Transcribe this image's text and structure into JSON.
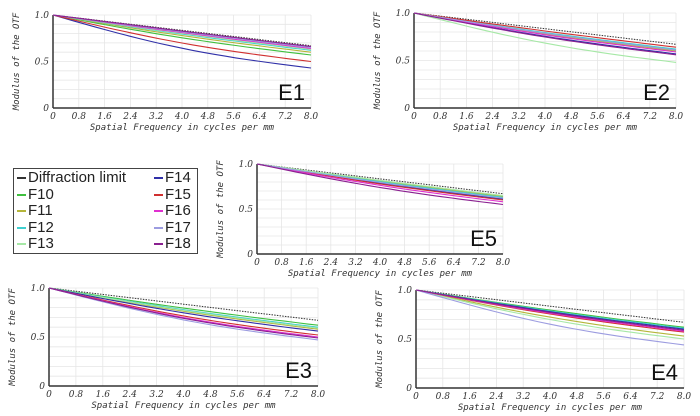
{
  "legend": {
    "items": [
      {
        "name": "Diffraction limit",
        "color": "#333333"
      },
      {
        "name": "F10",
        "color": "#3fbf3f"
      },
      {
        "name": "F11",
        "color": "#b5b53a"
      },
      {
        "name": "F12",
        "color": "#40d0d0"
      },
      {
        "name": "F13",
        "color": "#a6e8a6"
      },
      {
        "name": "F14",
        "color": "#3030a8"
      },
      {
        "name": "F15",
        "color": "#d03030"
      },
      {
        "name": "F16",
        "color": "#e030d0"
      },
      {
        "name": "F17",
        "color": "#9c9ce0"
      },
      {
        "name": "F18",
        "color": "#8a2090"
      }
    ]
  },
  "chart_data": [
    {
      "type": "line",
      "panel": "E1",
      "title": "E1",
      "xlabel": "Spatial Frequency in cycles per mm",
      "ylabel": "Modulus of the OTF",
      "xlim": [
        0,
        8
      ],
      "ylim": [
        0,
        1
      ],
      "xticks": [
        "0",
        "0.8",
        "1.6",
        "2.4",
        "3.2",
        "4.0",
        "4.8",
        "5.6",
        "6.4",
        "7.2",
        "8.0"
      ],
      "yticks": [
        "0",
        "0.5",
        "1.0"
      ],
      "grid": true,
      "x": [
        0,
        8
      ],
      "series": [
        {
          "name": "Diffraction limit",
          "values": [
            1.0,
            0.67
          ]
        },
        {
          "name": "F10",
          "values": [
            1.0,
            0.57
          ]
        },
        {
          "name": "F11",
          "values": [
            1.0,
            0.6
          ]
        },
        {
          "name": "F12",
          "values": [
            1.0,
            0.62
          ]
        },
        {
          "name": "F13",
          "values": [
            1.0,
            0.63
          ]
        },
        {
          "name": "F14",
          "values": [
            1.0,
            0.43
          ]
        },
        {
          "name": "F15",
          "values": [
            1.0,
            0.5
          ]
        },
        {
          "name": "F16",
          "values": [
            1.0,
            0.64
          ]
        },
        {
          "name": "F17",
          "values": [
            1.0,
            0.65
          ]
        },
        {
          "name": "F18",
          "values": [
            1.0,
            0.66
          ]
        }
      ]
    },
    {
      "type": "line",
      "panel": "E2",
      "title": "E2",
      "xlabel": "Spatial Frequency in cycles per mm",
      "ylabel": "Modulus of the OTF",
      "xlim": [
        0,
        8
      ],
      "ylim": [
        0,
        1
      ],
      "xticks": [
        "0",
        "0.8",
        "1.6",
        "2.4",
        "3.2",
        "4.0",
        "4.8",
        "5.6",
        "6.4",
        "7.2",
        "8.0"
      ],
      "yticks": [
        "0",
        "0.5",
        "1.0"
      ],
      "grid": true,
      "x": [
        0,
        8
      ],
      "series": [
        {
          "name": "Diffraction limit",
          "values": [
            1.0,
            0.67
          ]
        },
        {
          "name": "F10",
          "values": [
            1.0,
            0.61
          ]
        },
        {
          "name": "F11",
          "values": [
            1.0,
            0.6
          ]
        },
        {
          "name": "F12",
          "values": [
            1.0,
            0.62
          ]
        },
        {
          "name": "F13",
          "values": [
            1.0,
            0.48
          ]
        },
        {
          "name": "F14",
          "values": [
            1.0,
            0.57
          ]
        },
        {
          "name": "F15",
          "values": [
            1.0,
            0.64
          ]
        },
        {
          "name": "F16",
          "values": [
            1.0,
            0.59
          ]
        },
        {
          "name": "F17",
          "values": [
            1.0,
            0.61
          ]
        },
        {
          "name": "F18",
          "values": [
            1.0,
            0.56
          ]
        }
      ]
    },
    {
      "type": "line",
      "panel": "E5",
      "title": "E5",
      "xlabel": "Spatial Frequency in cycles per mm",
      "ylabel": "Modulus of the OTF",
      "xlim": [
        0,
        8
      ],
      "ylim": [
        0,
        1
      ],
      "xticks": [
        "0",
        "0.8",
        "1.6",
        "2.4",
        "3.2",
        "4.0",
        "4.8",
        "5.6",
        "6.4",
        "7.2",
        "8.0"
      ],
      "yticks": [
        "0",
        "0.5",
        "1.0"
      ],
      "grid": true,
      "x": [
        0,
        8
      ],
      "series": [
        {
          "name": "Diffraction limit",
          "values": [
            1.0,
            0.67
          ]
        },
        {
          "name": "F10",
          "values": [
            1.0,
            0.63
          ]
        },
        {
          "name": "F11",
          "values": [
            1.0,
            0.64
          ]
        },
        {
          "name": "F12",
          "values": [
            1.0,
            0.63
          ]
        },
        {
          "name": "F13",
          "values": [
            1.0,
            0.65
          ]
        },
        {
          "name": "F14",
          "values": [
            1.0,
            0.61
          ]
        },
        {
          "name": "F15",
          "values": [
            1.0,
            0.6
          ]
        },
        {
          "name": "F16",
          "values": [
            1.0,
            0.58
          ]
        },
        {
          "name": "F17",
          "values": [
            1.0,
            0.62
          ]
        },
        {
          "name": "F18",
          "values": [
            1.0,
            0.55
          ]
        }
      ]
    },
    {
      "type": "line",
      "panel": "E3",
      "title": "E3",
      "xlabel": "Spatial Frequency in cycles per mm",
      "ylabel": "Modulus of the OTF",
      "xlim": [
        0,
        8
      ],
      "ylim": [
        0,
        1
      ],
      "xticks": [
        "0",
        "0.8",
        "1.6",
        "2.4",
        "3.2",
        "4.0",
        "4.8",
        "5.6",
        "6.4",
        "7.2",
        "8.0"
      ],
      "yticks": [
        "0",
        "0.5",
        "1.0"
      ],
      "grid": true,
      "x": [
        0,
        8
      ],
      "series": [
        {
          "name": "Diffraction limit",
          "values": [
            1.0,
            0.67
          ]
        },
        {
          "name": "F10",
          "values": [
            1.0,
            0.62
          ]
        },
        {
          "name": "F11",
          "values": [
            1.0,
            0.58
          ]
        },
        {
          "name": "F12",
          "values": [
            1.0,
            0.6
          ]
        },
        {
          "name": "F13",
          "values": [
            1.0,
            0.59
          ]
        },
        {
          "name": "F14",
          "values": [
            1.0,
            0.56
          ]
        },
        {
          "name": "F15",
          "values": [
            1.0,
            0.52
          ]
        },
        {
          "name": "F16",
          "values": [
            1.0,
            0.5
          ]
        },
        {
          "name": "F17",
          "values": [
            1.0,
            0.47
          ]
        },
        {
          "name": "F18",
          "values": [
            1.0,
            0.49
          ]
        }
      ]
    },
    {
      "type": "line",
      "panel": "E4",
      "title": "E4",
      "xlabel": "Spatial Frequency in cycles per mm",
      "ylabel": "Modulus of the OTF",
      "xlim": [
        0,
        8
      ],
      "ylim": [
        0,
        1
      ],
      "xticks": [
        "0",
        "0.8",
        "1.6",
        "2.4",
        "3.2",
        "4.0",
        "4.8",
        "5.6",
        "6.4",
        "7.2",
        "8.0"
      ],
      "yticks": [
        "0",
        "0.5",
        "1.0"
      ],
      "grid": true,
      "x": [
        0,
        8
      ],
      "series": [
        {
          "name": "Diffraction limit",
          "values": [
            1.0,
            0.67
          ]
        },
        {
          "name": "F10",
          "values": [
            1.0,
            0.62
          ]
        },
        {
          "name": "F11",
          "values": [
            1.0,
            0.53
          ]
        },
        {
          "name": "F12",
          "values": [
            1.0,
            0.61
          ]
        },
        {
          "name": "F13",
          "values": [
            1.0,
            0.5
          ]
        },
        {
          "name": "F14",
          "values": [
            1.0,
            0.6
          ]
        },
        {
          "name": "F15",
          "values": [
            1.0,
            0.57
          ]
        },
        {
          "name": "F16",
          "values": [
            1.0,
            0.58
          ]
        },
        {
          "name": "F17",
          "values": [
            1.0,
            0.44
          ]
        },
        {
          "name": "F18",
          "values": [
            1.0,
            0.59
          ]
        }
      ]
    }
  ]
}
